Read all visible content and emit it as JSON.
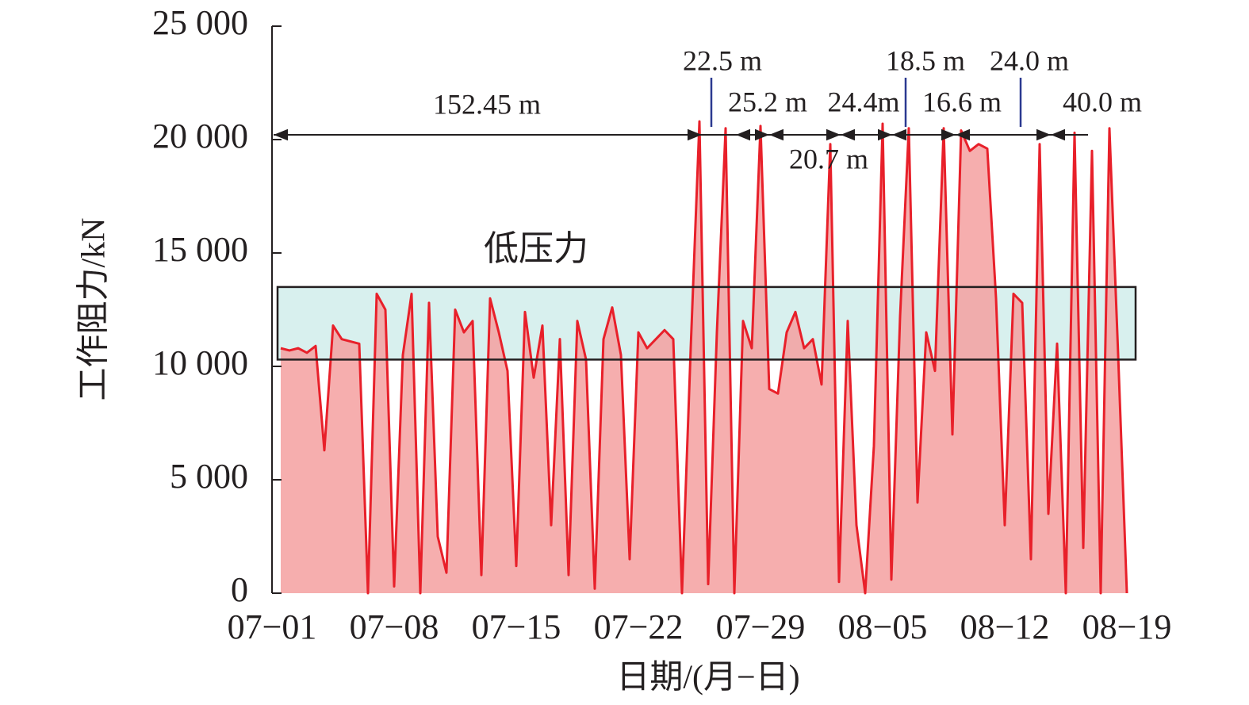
{
  "chart_data": {
    "type": "area",
    "y_label": "工作阻力/kN",
    "x_label": "日期/(月−日)",
    "xlim": [
      0,
      50
    ],
    "xticks": [
      {
        "value": 0,
        "label": "07−01"
      },
      {
        "value": 7,
        "label": "07−08"
      },
      {
        "value": 14,
        "label": "07−15"
      },
      {
        "value": 21,
        "label": "07−22"
      },
      {
        "value": 28,
        "label": "07−29"
      },
      {
        "value": 35,
        "label": "08−05"
      },
      {
        "value": 42,
        "label": "08−12"
      },
      {
        "value": 49,
        "label": "08−19"
      }
    ],
    "ylim": [
      0,
      25000
    ],
    "yticks": [
      0,
      {
        "value": 5000,
        "label": "5 000"
      },
      {
        "value": 10000,
        "label": "10 000"
      },
      {
        "value": 15000,
        "label": "15 000"
      },
      {
        "value": 20000,
        "label": "20 000"
      },
      {
        "value": 25000,
        "label": "25 000"
      }
    ],
    "color": "#e8202a",
    "fill_color": "#f4a0a0",
    "box": {
      "label": "低压力",
      "ylim": [
        10300,
        13500
      ],
      "color": "#d8f0ee"
    },
    "annotations": [
      "152.45 m",
      "22.5 m",
      "25.2 m",
      "24.4m",
      "20.7 m",
      "18.5 m",
      "16.6 m",
      "24.0 m",
      "40.0 m"
    ],
    "x": [
      0.5,
      1,
      1.5,
      2,
      2.5,
      3,
      3.5,
      4,
      4.5,
      5,
      5.5,
      6,
      6.5,
      7,
      7.5,
      8,
      8.5,
      9,
      9.5,
      10,
      10.5,
      11,
      11.5,
      12,
      12.5,
      13,
      13.5,
      14,
      14.5,
      15,
      15.5,
      16,
      16.5,
      17,
      17.5,
      18,
      18.5,
      19,
      19.5,
      20,
      20.5,
      21,
      21.5,
      22,
      22.5,
      23,
      23.5,
      24,
      24.5,
      25,
      25.5,
      26,
      26.5,
      27,
      27.5,
      28,
      28.5,
      29,
      29.5,
      30,
      30.5,
      31,
      31.5,
      32,
      32.5,
      33,
      33.5,
      34,
      34.5,
      35,
      35.5,
      36,
      36.5,
      37,
      37.5,
      38,
      38.5,
      39,
      39.5,
      40,
      40.5,
      41,
      41.5,
      42,
      42.5,
      43,
      43.5,
      44,
      44.5,
      45,
      45.5,
      46,
      46.5,
      47,
      47.5,
      48,
      48.5,
      49
    ],
    "values": [
      10800,
      10700,
      10800,
      10600,
      10900,
      6300,
      11800,
      11200,
      11100,
      11000,
      0,
      13200,
      12500,
      300,
      10500,
      13200,
      0,
      12800,
      2500,
      900,
      12500,
      11500,
      12000,
      800,
      13000,
      11500,
      9800,
      1200,
      12400,
      9500,
      11800,
      3000,
      11200,
      800,
      12000,
      10300,
      200,
      11200,
      12600,
      10500,
      1500,
      11500,
      10800,
      11200,
      11600,
      11200,
      0,
      10800,
      20800,
      400,
      11500,
      20500,
      0,
      12000,
      10800,
      20600,
      9000,
      8800,
      11500,
      12400,
      10800,
      11200,
      9200,
      19800,
      500,
      12000,
      3000,
      0,
      6500,
      20700,
      600,
      12200,
      20500,
      4000,
      11500,
      9800,
      20500,
      7000,
      20400,
      19500,
      19800,
      19600,
      13000,
      3000,
      13200,
      12800,
      1500,
      19800,
      3500,
      11000,
      0,
      20300,
      2000,
      19500,
      0,
      20500,
      10500,
      0
    ]
  }
}
